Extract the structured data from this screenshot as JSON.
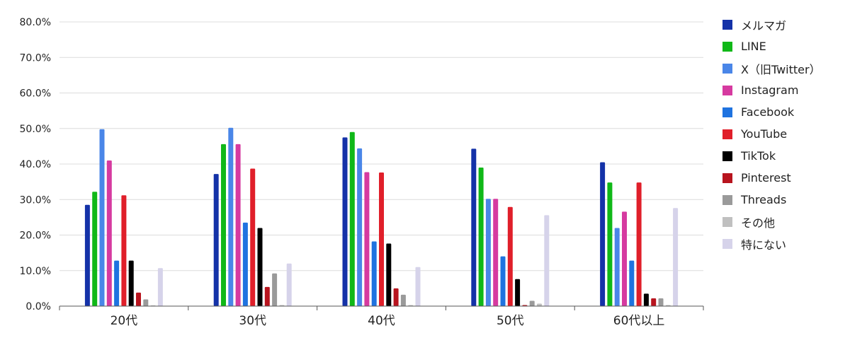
{
  "chart_data": {
    "type": "bar",
    "title": "",
    "xlabel": "",
    "ylabel": "",
    "ylim": [
      0,
      80
    ],
    "yticks": [
      "0.0%",
      "10.0%",
      "20.0%",
      "30.0%",
      "40.0%",
      "50.0%",
      "60.0%",
      "70.0%",
      "80.0%"
    ],
    "grid": true,
    "legend_position": "right",
    "categories": [
      "20代",
      "30代",
      "40代",
      "50代",
      "60代以上"
    ],
    "series": [
      {
        "name": "メルマガ",
        "color": "#1432a8",
        "values": [
          28.5,
          37.2,
          47.5,
          44.3,
          40.5
        ]
      },
      {
        "name": "LINE",
        "color": "#10b818",
        "values": [
          32.2,
          45.6,
          49.0,
          39.0,
          34.8
        ]
      },
      {
        "name": "X（旧Twitter）",
        "color": "#4a86e8",
        "values": [
          49.8,
          50.2,
          44.4,
          30.2,
          22.0
        ]
      },
      {
        "name": "Instagram",
        "color": "#d63aa0",
        "values": [
          41.0,
          45.6,
          37.7,
          30.2,
          26.6
        ]
      },
      {
        "name": "Facebook",
        "color": "#1f73e0",
        "values": [
          12.8,
          23.5,
          18.2,
          14.0,
          12.8
        ]
      },
      {
        "name": "YouTube",
        "color": "#e01f2a",
        "values": [
          31.2,
          38.7,
          37.6,
          27.9,
          34.8
        ]
      },
      {
        "name": "TikTok",
        "color": "#000000",
        "values": [
          12.8,
          22.0,
          17.6,
          7.6,
          3.5
        ]
      },
      {
        "name": "Pinterest",
        "color": "#b8141e",
        "values": [
          3.8,
          5.4,
          5.0,
          0.3,
          2.2
        ]
      },
      {
        "name": "Threads",
        "color": "#9a9a9a",
        "values": [
          1.9,
          9.2,
          3.2,
          1.5,
          2.2
        ]
      },
      {
        "name": "その他",
        "color": "#c0c0c0",
        "values": [
          0.2,
          0.3,
          0.3,
          0.7,
          0.3
        ]
      },
      {
        "name": "特にない",
        "color": "#d6d3ea",
        "values": [
          10.7,
          12.0,
          11.0,
          25.6,
          27.6
        ]
      }
    ]
  }
}
